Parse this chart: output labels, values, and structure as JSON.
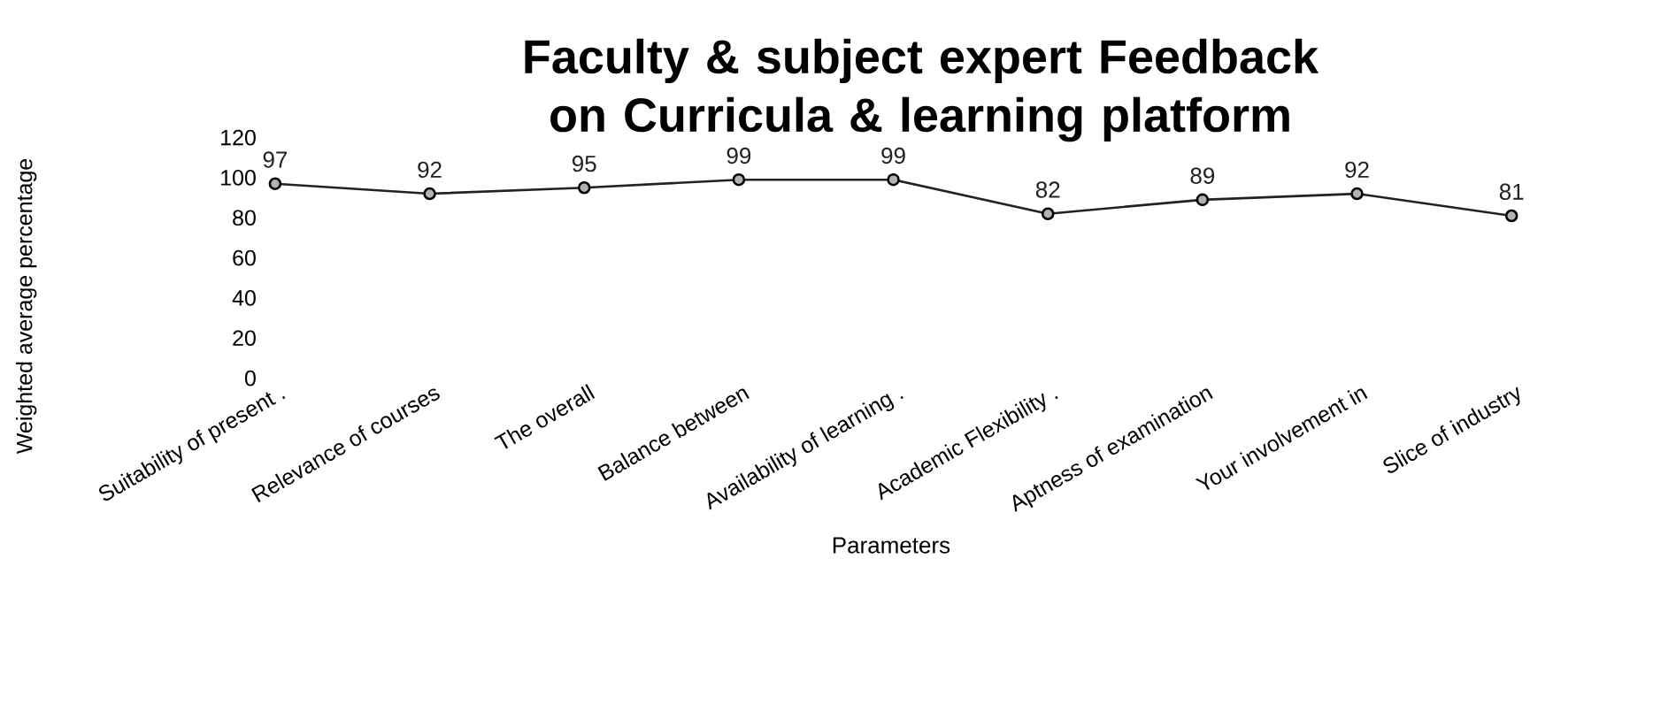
{
  "chart_data": {
    "type": "line",
    "title": "Faculty & subject expert Feedback on Curricula & learning platform",
    "xlabel": "Parameters",
    "ylabel": "Weighted average percentage",
    "categories": [
      "Suitability of present .",
      "Relevance of courses",
      "The overall",
      "Balance between",
      "Availability of learning .",
      "Academic Flexibility .",
      "Aptness of examination",
      "Your involvement in",
      "Slice of industry"
    ],
    "values": [
      97,
      92,
      95,
      99,
      99,
      82,
      89,
      92,
      81
    ],
    "color": "#222222",
    "ylim": [
      0,
      120
    ],
    "yticks": [
      0,
      20,
      40,
      60,
      80,
      100,
      120
    ],
    "marker": "circle",
    "line_style": "solid",
    "data_labels": true
  }
}
